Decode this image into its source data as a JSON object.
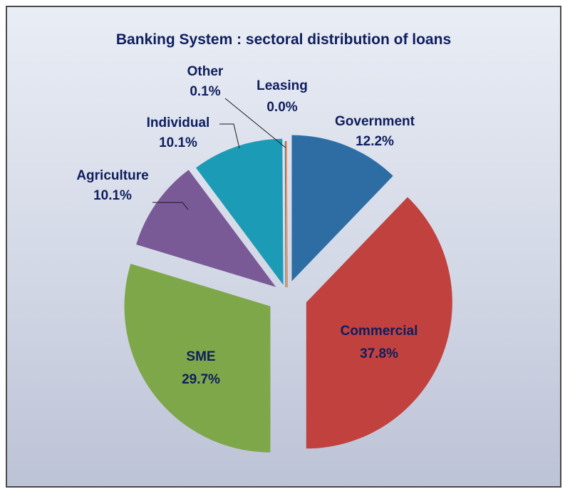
{
  "chart_data": {
    "type": "pie",
    "title": "Banking System : sectoral distribution of loans",
    "slices": [
      {
        "name": "Government",
        "value": 12.2,
        "label": "12.2%",
        "color": "#2e6da4"
      },
      {
        "name": "Commercial",
        "value": 37.8,
        "label": "37.8%",
        "color": "#c0413e"
      },
      {
        "name": "SME",
        "value": 29.7,
        "label": "29.7%",
        "color": "#7ea749"
      },
      {
        "name": "Agriculture",
        "value": 10.1,
        "label": "10.1%",
        "color": "#7a5a96"
      },
      {
        "name": "Individual",
        "value": 10.1,
        "label": "10.1%",
        "color": "#1c9bb6"
      },
      {
        "name": "Other",
        "value": 0.1,
        "label": "0.1%",
        "color": "#3a6fb5"
      },
      {
        "name": "Leasing",
        "value": 0.0,
        "label": "0.0%",
        "color": "#f0964a"
      }
    ],
    "label_placement": "slice names with percentages; Commercial and SME inside their slices, others outside with leader lines",
    "legend": "none",
    "exploded": true
  }
}
